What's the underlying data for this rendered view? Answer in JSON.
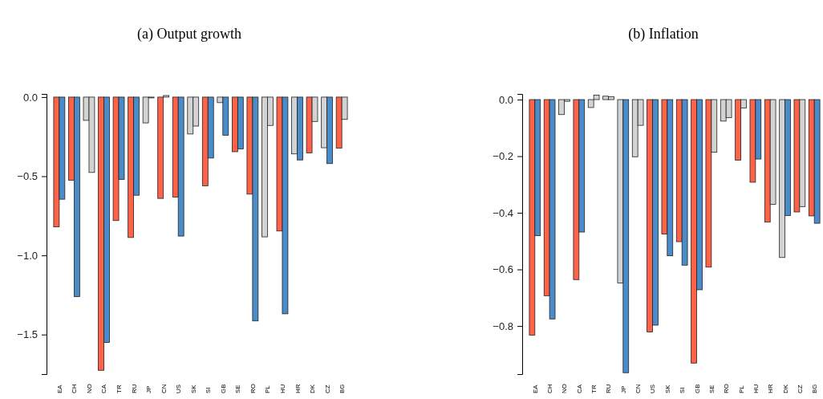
{
  "chart_data": [
    {
      "type": "bar",
      "title": "(a) Output growth",
      "categories": [
        "EA",
        "CH",
        "NO",
        "CA",
        "TR",
        "RU",
        "JP",
        "CN",
        "US",
        "SK",
        "SI",
        "GB",
        "SE",
        "RO",
        "PL",
        "HU",
        "HR",
        "DK",
        "CZ",
        "BG"
      ],
      "series": [
        {
          "values": [
            -0.82,
            -0.525,
            -0.147,
            -1.726,
            -0.78,
            -0.887,
            -0.163,
            -0.64,
            -0.632,
            -0.233,
            -0.56,
            -0.035,
            -0.345,
            -0.613,
            -0.883,
            -0.846,
            -0.359,
            -0.352,
            -0.32,
            -0.322
          ],
          "colors": [
            "#ff6347",
            "#ff6347",
            "#d3d3d3",
            "#ff6347",
            "#ff6347",
            "#ff6347",
            "#d3d3d3",
            "#ff6347",
            "#ff6347",
            "#d3d3d3",
            "#ff6347",
            "#d3d3d3",
            "#ff6347",
            "#ff6347",
            "#d3d3d3",
            "#ff6347",
            "#d3d3d3",
            "#ff6347",
            "#d3d3d3",
            "#ff6347"
          ]
        },
        {
          "values": [
            -0.645,
            -1.26,
            -0.476,
            -1.55,
            -0.52,
            -0.62,
            -0.005,
            0.01,
            -0.878,
            -0.183,
            -0.385,
            -0.241,
            -0.327,
            -1.414,
            -0.179,
            -1.369,
            -0.397,
            -0.154,
            -0.42,
            -0.141
          ],
          "colors": [
            "#4a8cc9",
            "#4a8cc9",
            "#d3d3d3",
            "#4a8cc9",
            "#4a8cc9",
            "#4a8cc9",
            "#d3d3d3",
            "#d3d3d3",
            "#4a8cc9",
            "#d3d3d3",
            "#4a8cc9",
            "#4a8cc9",
            "#4a8cc9",
            "#4a8cc9",
            "#d3d3d3",
            "#4a8cc9",
            "#4a8cc9",
            "#d3d3d3",
            "#4a8cc9",
            "#d3d3d3"
          ]
        }
      ],
      "ylim": [
        -1.75,
        0.02
      ],
      "yticks": [
        {
          "value": 0,
          "label": "0.0"
        },
        {
          "value": -0.5,
          "label": "−0.5"
        },
        {
          "value": -1,
          "label": "−1.0"
        },
        {
          "value": -1.5,
          "label": "−1.5"
        }
      ]
    },
    {
      "type": "bar",
      "title": "(b) Inflation",
      "categories": [
        "EA",
        "CH",
        "NO",
        "CA",
        "TR",
        "RU",
        "JP",
        "CN",
        "US",
        "SK",
        "SI",
        "GB",
        "SE",
        "RO",
        "PL",
        "HU",
        "HR",
        "DK",
        "CZ",
        "BG"
      ],
      "series": [
        {
          "values": [
            -0.832,
            -0.693,
            -0.053,
            -0.636,
            -0.028,
            0.012,
            -0.648,
            -0.202,
            -0.821,
            -0.475,
            -0.502,
            -0.931,
            -0.592,
            -0.076,
            -0.214,
            -0.292,
            -0.433,
            -0.558,
            -0.397,
            -0.411
          ],
          "colors": [
            "#ff6347",
            "#ff6347",
            "#d3d3d3",
            "#ff6347",
            "#d3d3d3",
            "#d3d3d3",
            "#d3d3d3",
            "#d3d3d3",
            "#ff6347",
            "#ff6347",
            "#ff6347",
            "#ff6347",
            "#ff6347",
            "#d3d3d3",
            "#ff6347",
            "#ff6347",
            "#ff6347",
            "#d3d3d3",
            "#ff6347",
            "#ff6347"
          ]
        },
        {
          "values": [
            -0.481,
            -0.775,
            -0.006,
            -0.468,
            0.016,
            0.01,
            -0.965,
            -0.091,
            -0.797,
            -0.552,
            -0.585,
            -0.672,
            -0.186,
            -0.064,
            -0.03,
            -0.21,
            -0.37,
            -0.41,
            -0.378,
            -0.437
          ],
          "colors": [
            "#4a8cc9",
            "#4a8cc9",
            "#d3d3d3",
            "#4a8cc9",
            "#d3d3d3",
            "#d3d3d3",
            "#4a8cc9",
            "#d3d3d3",
            "#4a8cc9",
            "#4a8cc9",
            "#4a8cc9",
            "#4a8cc9",
            "#d3d3d3",
            "#d3d3d3",
            "#d3d3d3",
            "#4a8cc9",
            "#d3d3d3",
            "#4a8cc9",
            "#d3d3d3",
            "#4a8cc9"
          ]
        }
      ],
      "ylim": [
        -0.97,
        0.02
      ],
      "yticks": [
        {
          "value": 0,
          "label": "0.0"
        },
        {
          "value": -0.2,
          "label": "−0.2"
        },
        {
          "value": -0.4,
          "label": "−0.4"
        },
        {
          "value": -0.6,
          "label": "−0.6"
        },
        {
          "value": -0.8,
          "label": "−0.8"
        }
      ]
    }
  ]
}
